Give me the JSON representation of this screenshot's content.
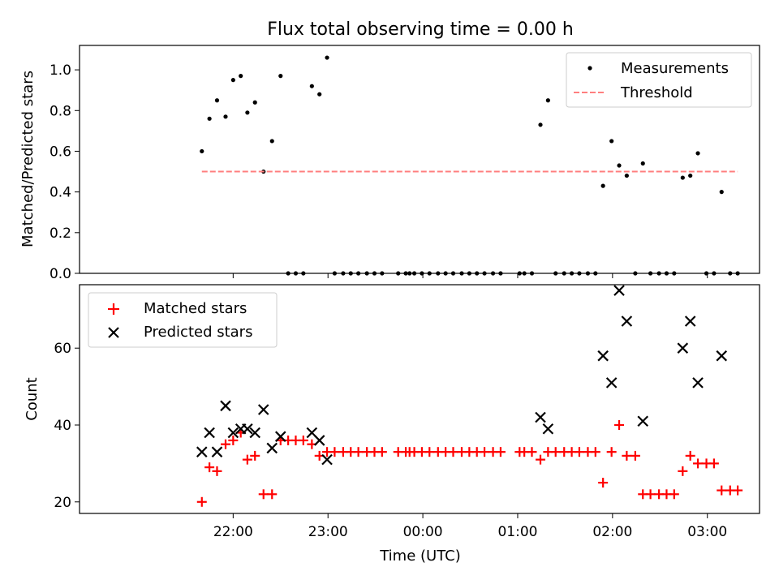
{
  "figure": {
    "title": "Flux total observing time = 0.00 h",
    "xlabel": "Time (UTC)"
  },
  "chart_data": [
    {
      "type": "scatter",
      "title": "Flux total observing time = 0.00 h",
      "xlabel": "",
      "ylabel": "Matched/Predicted stars",
      "x_unit": "hours since 21:00 UTC",
      "xlim": [
        -0.62,
        6.55
      ],
      "ylim": [
        0,
        1.12
      ],
      "yticks": [
        0.0,
        0.2,
        0.4,
        0.6,
        0.8,
        1.0
      ],
      "ytick_labels": [
        "0.0",
        "0.2",
        "0.4",
        "0.6",
        "0.8",
        "1.0"
      ],
      "legend_position": "top-right",
      "grid": false,
      "series": [
        {
          "name": "Measurements",
          "kind": "points",
          "color": "#000000",
          "points": [
            [
              0.67,
              0.6
            ],
            [
              0.75,
              0.76
            ],
            [
              0.83,
              0.85
            ],
            [
              0.92,
              0.77
            ],
            [
              1.0,
              0.95
            ],
            [
              1.08,
              0.97
            ],
            [
              1.15,
              0.79
            ],
            [
              1.23,
              0.84
            ],
            [
              1.32,
              0.5
            ],
            [
              1.41,
              0.65
            ],
            [
              1.5,
              0.97
            ],
            [
              1.58,
              0.0
            ],
            [
              1.66,
              0.0
            ],
            [
              1.74,
              0.0
            ],
            [
              1.83,
              0.92
            ],
            [
              1.91,
              0.88
            ],
            [
              1.99,
              1.06
            ],
            [
              2.07,
              0.0
            ],
            [
              2.16,
              0.0
            ],
            [
              2.24,
              0.0
            ],
            [
              2.32,
              0.0
            ],
            [
              2.41,
              0.0
            ],
            [
              2.49,
              0.0
            ],
            [
              2.57,
              0.0
            ],
            [
              2.74,
              0.0
            ],
            [
              2.82,
              0.0
            ],
            [
              2.86,
              0.0
            ],
            [
              2.91,
              0.0
            ],
            [
              2.99,
              0.0
            ],
            [
              3.07,
              0.0
            ],
            [
              3.16,
              0.0
            ],
            [
              3.24,
              0.0
            ],
            [
              3.32,
              0.0
            ],
            [
              3.41,
              0.0
            ],
            [
              3.49,
              0.0
            ],
            [
              3.57,
              0.0
            ],
            [
              3.65,
              0.0
            ],
            [
              3.74,
              0.0
            ],
            [
              3.82,
              0.0
            ],
            [
              4.02,
              0.0
            ],
            [
              4.07,
              0.0
            ],
            [
              4.15,
              0.0
            ],
            [
              4.24,
              0.73
            ],
            [
              4.32,
              0.85
            ],
            [
              4.4,
              0.0
            ],
            [
              4.49,
              0.0
            ],
            [
              4.57,
              0.0
            ],
            [
              4.65,
              0.0
            ],
            [
              4.74,
              0.0
            ],
            [
              4.82,
              0.0
            ],
            [
              4.9,
              0.43
            ],
            [
              4.99,
              0.65
            ],
            [
              5.07,
              0.53
            ],
            [
              5.15,
              0.48
            ],
            [
              5.24,
              0.0
            ],
            [
              5.32,
              0.54
            ],
            [
              5.4,
              0.0
            ],
            [
              5.49,
              0.0
            ],
            [
              5.57,
              0.0
            ],
            [
              5.65,
              0.0
            ],
            [
              5.74,
              0.47
            ],
            [
              5.82,
              0.48
            ],
            [
              5.9,
              0.59
            ],
            [
              5.99,
              0.0
            ],
            [
              6.07,
              0.0
            ],
            [
              6.15,
              0.4
            ],
            [
              6.24,
              0.0
            ],
            [
              6.32,
              0.0
            ]
          ]
        },
        {
          "name": "Threshold",
          "kind": "dashed-line",
          "color": "#ff7f7f",
          "points": [
            [
              0.67,
              0.5
            ],
            [
              6.32,
              0.5
            ]
          ]
        }
      ]
    },
    {
      "type": "scatter",
      "title": "",
      "xlabel": "Time (UTC)",
      "ylabel": "Count",
      "x_unit": "hours since 21:00 UTC",
      "xlim": [
        -0.62,
        6.55
      ],
      "ylim": [
        17,
        76.5
      ],
      "yticks": [
        20,
        40,
        60
      ],
      "ytick_labels": [
        "20",
        "40",
        "60"
      ],
      "xticks": [
        1,
        2,
        3,
        4,
        5,
        6
      ],
      "xtick_labels": [
        "22:00",
        "23:00",
        "00:00",
        "01:00",
        "02:00",
        "03:00"
      ],
      "legend_position": "top-left",
      "grid": false,
      "series": [
        {
          "name": "Matched stars",
          "kind": "plus",
          "color": "#ff0000",
          "points": [
            [
              0.67,
              20
            ],
            [
              0.75,
              29
            ],
            [
              0.83,
              28
            ],
            [
              0.92,
              35
            ],
            [
              1.0,
              36
            ],
            [
              1.08,
              38
            ],
            [
              1.15,
              31
            ],
            [
              1.23,
              32
            ],
            [
              1.32,
              22
            ],
            [
              1.41,
              22
            ],
            [
              1.5,
              36
            ],
            [
              1.58,
              36
            ],
            [
              1.66,
              36
            ],
            [
              1.74,
              36
            ],
            [
              1.83,
              35
            ],
            [
              1.91,
              32
            ],
            [
              1.99,
              33
            ],
            [
              2.07,
              33
            ],
            [
              2.16,
              33
            ],
            [
              2.24,
              33
            ],
            [
              2.32,
              33
            ],
            [
              2.41,
              33
            ],
            [
              2.49,
              33
            ],
            [
              2.57,
              33
            ],
            [
              2.74,
              33
            ],
            [
              2.82,
              33
            ],
            [
              2.86,
              33
            ],
            [
              2.91,
              33
            ],
            [
              2.99,
              33
            ],
            [
              3.07,
              33
            ],
            [
              3.16,
              33
            ],
            [
              3.24,
              33
            ],
            [
              3.32,
              33
            ],
            [
              3.41,
              33
            ],
            [
              3.49,
              33
            ],
            [
              3.57,
              33
            ],
            [
              3.65,
              33
            ],
            [
              3.74,
              33
            ],
            [
              3.82,
              33
            ],
            [
              4.02,
              33
            ],
            [
              4.07,
              33
            ],
            [
              4.15,
              33
            ],
            [
              4.24,
              31
            ],
            [
              4.32,
              33
            ],
            [
              4.4,
              33
            ],
            [
              4.49,
              33
            ],
            [
              4.57,
              33
            ],
            [
              4.65,
              33
            ],
            [
              4.74,
              33
            ],
            [
              4.82,
              33
            ],
            [
              4.9,
              25
            ],
            [
              4.99,
              33
            ],
            [
              5.07,
              40
            ],
            [
              5.15,
              32
            ],
            [
              5.24,
              32
            ],
            [
              5.32,
              22
            ],
            [
              5.4,
              22
            ],
            [
              5.49,
              22
            ],
            [
              5.57,
              22
            ],
            [
              5.65,
              22
            ],
            [
              5.74,
              28
            ],
            [
              5.82,
              32
            ],
            [
              5.9,
              30
            ],
            [
              5.99,
              30
            ],
            [
              6.07,
              30
            ],
            [
              6.15,
              23
            ],
            [
              6.24,
              23
            ],
            [
              6.32,
              23
            ]
          ]
        },
        {
          "name": "Predicted stars",
          "kind": "x",
          "color": "#000000",
          "points": [
            [
              0.67,
              33
            ],
            [
              0.75,
              38
            ],
            [
              0.83,
              33
            ],
            [
              0.92,
              45
            ],
            [
              1.0,
              38
            ],
            [
              1.08,
              39
            ],
            [
              1.15,
              39
            ],
            [
              1.23,
              38
            ],
            [
              1.32,
              44
            ],
            [
              1.41,
              34
            ],
            [
              1.5,
              37
            ],
            [
              1.83,
              38
            ],
            [
              1.91,
              36
            ],
            [
              1.99,
              31
            ],
            [
              4.24,
              42
            ],
            [
              4.32,
              39
            ],
            [
              4.9,
              58
            ],
            [
              4.99,
              51
            ],
            [
              5.07,
              75
            ],
            [
              5.15,
              67
            ],
            [
              5.32,
              41
            ],
            [
              5.74,
              60
            ],
            [
              5.82,
              67
            ],
            [
              5.9,
              51
            ],
            [
              6.15,
              58
            ]
          ]
        }
      ]
    }
  ]
}
